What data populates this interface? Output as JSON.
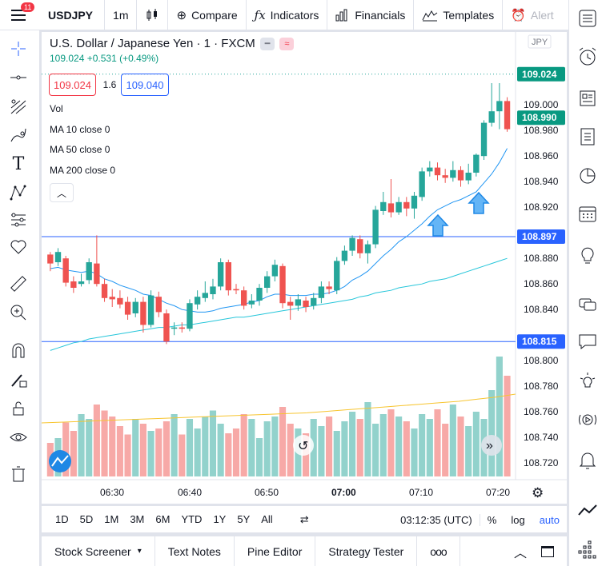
{
  "toolbar": {
    "notification_count": "11",
    "symbol": "USDJPY",
    "interval": "1m",
    "compare_label": "Compare",
    "indicators_label": "Indicators",
    "financials_label": "Financials",
    "templates_label": "Templates",
    "alert_label": "Alert"
  },
  "legend": {
    "title": "U.S. Dollar / Japanese Yen · 1 · FXCM",
    "change": "109.024 +0.531 (+0.49%)",
    "sell_price": "109.024",
    "spread": "1.6",
    "buy_price": "109.040",
    "vol": "Vol",
    "ma10": "MA 10 close 0",
    "ma50": "MA 50 close 0",
    "ma200": "MA 200 close 0"
  },
  "chart_data": {
    "type": "candlestick",
    "currency_label": "JPY",
    "price_ticks": [
      "109.000",
      "108.980",
      "108.960",
      "108.940",
      "108.920",
      "108.880",
      "108.860",
      "108.840",
      "108.800",
      "108.780",
      "108.760",
      "108.740",
      "108.720"
    ],
    "price_range": [
      108.707,
      109.052
    ],
    "time_ticks": [
      "06:30",
      "06:40",
      "06:50",
      "07:00",
      "07:10",
      "07:20"
    ],
    "price_labels": [
      {
        "price": 109.024,
        "text": "109.024",
        "color": "#089981"
      },
      {
        "price": 108.99,
        "text": "108.990",
        "color": "#089981"
      },
      {
        "price": 108.897,
        "text": "108.897",
        "color": "#2962ff"
      },
      {
        "price": 108.815,
        "text": "108.815",
        "color": "#2962ff"
      }
    ],
    "horizontal_lines": [
      108.897,
      108.815
    ],
    "candles": [
      [
        108.883,
        108.876,
        108.885,
        108.87
      ],
      [
        108.877,
        108.885,
        108.888,
        108.874
      ],
      [
        108.88,
        108.861,
        108.882,
        108.858
      ],
      [
        108.862,
        108.857,
        108.866,
        108.853
      ],
      [
        108.86,
        108.862,
        108.868,
        108.858
      ],
      [
        108.863,
        108.877,
        108.88,
        108.86
      ],
      [
        108.876,
        108.86,
        108.898,
        108.858
      ],
      [
        108.86,
        108.849,
        108.864,
        108.846
      ],
      [
        108.85,
        108.848,
        108.856,
        108.842
      ],
      [
        108.849,
        108.844,
        108.855,
        108.841
      ],
      [
        108.846,
        108.836,
        108.85,
        108.832
      ],
      [
        108.837,
        108.846,
        108.849,
        108.834
      ],
      [
        108.846,
        108.828,
        108.85,
        108.822
      ],
      [
        108.828,
        108.851,
        108.855,
        108.826
      ],
      [
        108.85,
        108.838,
        108.854,
        108.834
      ],
      [
        108.837,
        108.815,
        108.84,
        108.813
      ],
      [
        108.825,
        108.826,
        108.83,
        108.82
      ],
      [
        108.826,
        108.825,
        108.83,
        108.822
      ],
      [
        108.825,
        108.845,
        108.848,
        108.823
      ],
      [
        108.844,
        108.85,
        108.855,
        108.84
      ],
      [
        108.849,
        108.853,
        108.862,
        108.846
      ],
      [
        108.852,
        108.858,
        108.864,
        108.848
      ],
      [
        108.858,
        108.877,
        108.88,
        108.855
      ],
      [
        108.877,
        108.855,
        108.879,
        108.851
      ],
      [
        108.856,
        108.855,
        108.86,
        108.852
      ],
      [
        108.855,
        108.843,
        108.858,
        108.84
      ],
      [
        108.844,
        108.847,
        108.852,
        108.841
      ],
      [
        108.847,
        108.857,
        108.86,
        108.843
      ],
      [
        108.857,
        108.866,
        108.87,
        108.853
      ],
      [
        108.866,
        108.875,
        108.879,
        108.862
      ],
      [
        108.874,
        108.845,
        108.876,
        108.841
      ],
      [
        108.846,
        108.843,
        108.85,
        108.832
      ],
      [
        108.843,
        108.848,
        108.852,
        108.839
      ],
      [
        108.847,
        108.842,
        108.85,
        108.838
      ],
      [
        108.843,
        108.849,
        108.853,
        108.84
      ],
      [
        108.849,
        108.858,
        108.862,
        108.845
      ],
      [
        108.858,
        108.856,
        108.862,
        108.852
      ],
      [
        108.855,
        108.878,
        108.881,
        108.852
      ],
      [
        108.878,
        108.886,
        108.89,
        108.875
      ],
      [
        108.886,
        108.896,
        108.898,
        108.882
      ],
      [
        108.895,
        108.884,
        108.898,
        108.88
      ],
      [
        108.884,
        108.891,
        108.894,
        108.876
      ],
      [
        108.891,
        108.918,
        108.921,
        108.888
      ],
      [
        108.917,
        108.924,
        108.932,
        108.914
      ],
      [
        108.923,
        108.916,
        108.942,
        108.912
      ],
      [
        108.916,
        108.924,
        108.928,
        108.914
      ],
      [
        108.924,
        108.919,
        108.928,
        108.913
      ],
      [
        108.919,
        108.929,
        108.932,
        108.911
      ],
      [
        108.928,
        108.948,
        108.951,
        108.925
      ],
      [
        108.948,
        108.951,
        108.956,
        108.944
      ],
      [
        108.951,
        108.945,
        108.955,
        108.941
      ],
      [
        108.945,
        108.943,
        108.95,
        108.939
      ],
      [
        108.943,
        108.949,
        108.956,
        108.94
      ],
      [
        108.949,
        108.941,
        108.952,
        108.936
      ],
      [
        108.941,
        108.947,
        108.954,
        108.938
      ],
      [
        108.947,
        108.961,
        108.962,
        108.944
      ],
      [
        108.96,
        108.986,
        108.988,
        108.957
      ],
      [
        108.986,
        108.995,
        109.017,
        108.983
      ],
      [
        108.995,
        109.003,
        109.017,
        108.981
      ],
      [
        109.003,
        108.981,
        109.006,
        108.979
      ]
    ],
    "ma10": [
      108.872,
      108.873,
      108.871,
      108.87,
      108.869,
      108.87,
      108.868,
      108.864,
      108.862,
      108.859,
      108.857,
      108.855,
      108.852,
      108.851,
      108.848,
      108.845,
      108.843,
      108.84,
      108.839,
      108.838,
      108.838,
      108.839,
      108.841,
      108.842,
      108.843,
      108.844,
      108.846,
      108.847,
      108.85,
      108.852,
      108.852,
      108.851,
      108.851,
      108.851,
      108.852,
      108.852,
      108.853,
      108.855,
      108.858,
      108.863,
      108.866,
      108.87,
      108.876,
      108.882,
      108.887,
      108.893,
      108.897,
      108.902,
      108.907,
      108.913,
      108.918,
      108.921,
      108.924,
      108.926,
      108.929,
      108.932,
      108.939,
      108.946,
      108.955,
      108.966
    ],
    "ma50": [
      108.808,
      108.81,
      108.812,
      108.814,
      108.815,
      108.817,
      108.818,
      108.819,
      108.82,
      108.821,
      108.822,
      108.823,
      108.824,
      108.825,
      108.826,
      108.826,
      108.827,
      108.828,
      108.828,
      108.829,
      108.83,
      108.831,
      108.832,
      108.833,
      108.834,
      108.834,
      108.835,
      108.836,
      108.837,
      108.838,
      108.839,
      108.84,
      108.841,
      108.842,
      108.843,
      108.844,
      108.845,
      108.846,
      108.847,
      108.848,
      108.85,
      108.851,
      108.853,
      108.854,
      108.855,
      108.857,
      108.858,
      108.859,
      108.86,
      108.862,
      108.863,
      108.864,
      108.866,
      108.868,
      108.87,
      108.872,
      108.874,
      108.876,
      108.878,
      108.88
    ]
  },
  "volume": {
    "bars": [
      0.28,
      0.32,
      0.45,
      0.38,
      0.52,
      0.48,
      0.6,
      0.55,
      0.5,
      0.42,
      0.35,
      0.48,
      0.44,
      0.38,
      0.4,
      0.46,
      0.52,
      0.35,
      0.48,
      0.4,
      0.5,
      0.55,
      0.44,
      0.36,
      0.4,
      0.52,
      0.48,
      0.32,
      0.46,
      0.5,
      0.58,
      0.44,
      0.4,
      0.36,
      0.48,
      0.42,
      0.5,
      0.38,
      0.46,
      0.54,
      0.48,
      0.62,
      0.44,
      0.52,
      0.56,
      0.5,
      0.46,
      0.4,
      0.52,
      0.48,
      0.56,
      0.44,
      0.6,
      0.5,
      0.42,
      0.54,
      0.48,
      0.72,
      1.0,
      0.84
    ],
    "ma200": [
      0.3,
      0.31,
      0.32,
      0.33,
      0.34,
      0.35,
      0.36,
      0.37,
      0.38,
      0.39,
      0.4,
      0.41,
      0.42,
      0.43,
      0.44,
      0.46,
      0.48,
      0.5,
      0.52,
      0.54,
      0.56,
      0.58,
      0.6,
      0.63,
      0.66,
      0.7
    ]
  },
  "timeframe": {
    "periods": [
      "1D",
      "5D",
      "1M",
      "3M",
      "6M",
      "YTD",
      "1Y",
      "5Y",
      "All"
    ],
    "clock": "03:12:35 (UTC)",
    "percent": "%",
    "log": "log",
    "auto": "auto"
  },
  "bottom": {
    "stock_screener": "Stock Screener",
    "text_notes": "Text Notes",
    "pine_editor": "Pine Editor",
    "strategy_tester": "Strategy Tester",
    "more": "ooo"
  },
  "colors": {
    "up": "#26a69a",
    "down": "#ef5350",
    "accent": "#2962ff",
    "ma": "#2196f3",
    "ma200": "#f7c530"
  },
  "icons": {
    "arrow": "arrow-up-icon"
  }
}
